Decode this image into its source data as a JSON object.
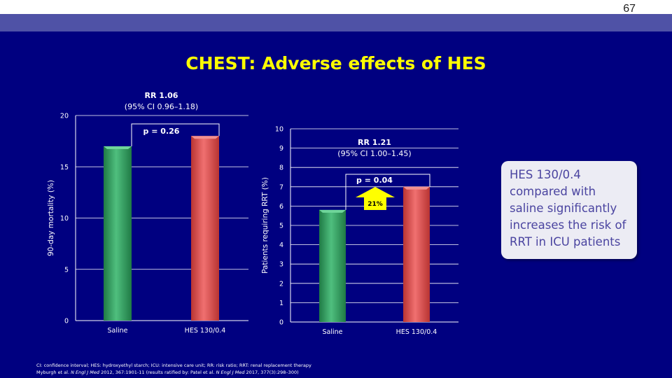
{
  "slide_number": "67",
  "title": "CHEST: Adverse effects of HES",
  "callout": "HES 130/0.4 compared with saline significantly increases the risk of RRT in ICU patients",
  "footnote": {
    "abbreviations": "CI: confidence interval; HES: hydroxyethyl starch; ICU: intensive care unit; RR: risk ratio; RRT: renal replacement therapy",
    "ref_authors": "Myburgh et al.",
    "ref_journal": "N Engl J Med",
    "ref_details": "2012, 367:1901-11 (results ratified by: Patel et al.",
    "ref_journal2": "N Engl J Med",
    "ref_details2": "2017, 377(3):298–300)"
  },
  "colors": {
    "background": "#000080",
    "saline": "#2e9a5e",
    "hes": "#e0504e",
    "title": "#ffff00",
    "arrow": "#ffff00"
  },
  "chart_data": [
    {
      "type": "bar",
      "categories": [
        "Saline",
        "HES 130/0.4"
      ],
      "values": [
        17,
        18
      ],
      "ylabel": "90-day mortality (%)",
      "ylim": [
        0,
        20
      ],
      "yticks": [
        "0",
        "5",
        "10",
        "15",
        "20"
      ],
      "grid": true,
      "annotations": {
        "rr": "RR 1.06",
        "ci": "(95% CI 0.96–1.18)",
        "p": "p = 0.26"
      }
    },
    {
      "type": "bar",
      "categories": [
        "Saline",
        "HES 130/0.4"
      ],
      "values": [
        5.8,
        7.0
      ],
      "ylabel": "Patients requiring RRT (%)",
      "ylim": [
        0,
        10
      ],
      "yticks": [
        "0",
        "1",
        "2",
        "3",
        "4",
        "5",
        "6",
        "7",
        "8",
        "9",
        "10"
      ],
      "grid": true,
      "annotations": {
        "rr": "RR 1.21",
        "ci": "(95% CI 1.00–1.45)",
        "p": "p = 0.04",
        "increase": "21%"
      }
    }
  ]
}
